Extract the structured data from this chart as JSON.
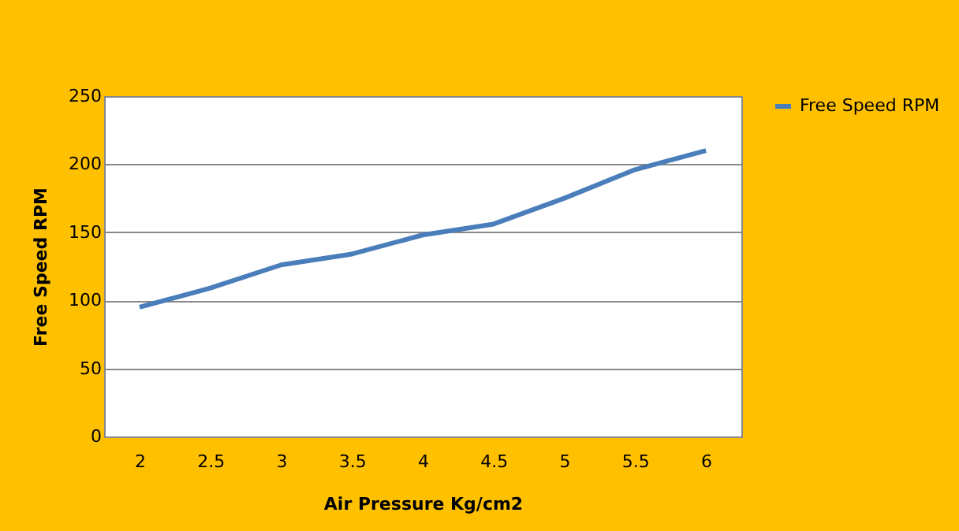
{
  "chart_data": {
    "type": "line",
    "xlabel": "Air Pressure Kg/cm2",
    "ylabel": "Free Speed RPM",
    "categories": [
      "2",
      "2.5",
      "3",
      "3.5",
      "4",
      "4.5",
      "5",
      "5.5",
      "6"
    ],
    "series": [
      {
        "name": "Free Speed RPM",
        "color": "#4a7ebb",
        "values": [
          95,
          109,
          126,
          134,
          148,
          156,
          175,
          196,
          210
        ]
      }
    ],
    "ylim": [
      0,
      250
    ],
    "yticks": [
      0,
      50,
      100,
      150,
      200,
      250
    ],
    "grid": "y",
    "legend": "right",
    "marker": "none",
    "line_style": "solid"
  }
}
